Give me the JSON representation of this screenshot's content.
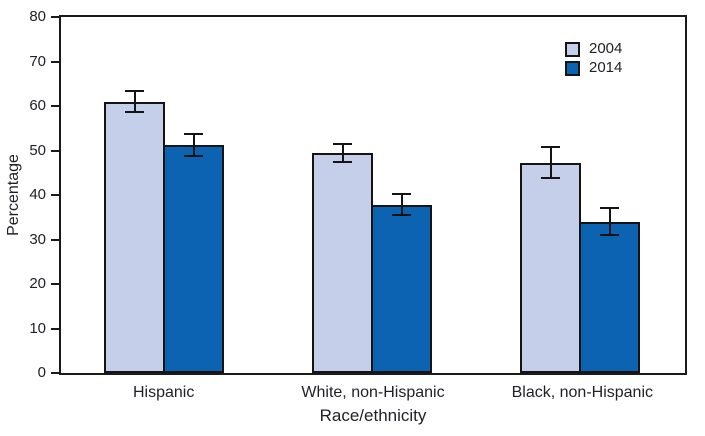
{
  "chart_data": {
    "type": "bar",
    "title": "",
    "categories": [
      "Hispanic",
      "White, non-Hispanic",
      "Black, non-Hispanic"
    ],
    "series": [
      {
        "name": "2004",
        "color": "#c6cfea",
        "values": [
          61.0,
          49.5,
          47.3
        ],
        "errors": [
          2.6,
          2.3,
          3.8
        ]
      },
      {
        "name": "2014",
        "color": "#0b63b1",
        "values": [
          51.3,
          37.8,
          34.0
        ],
        "errors": [
          2.7,
          2.6,
          3.3
        ]
      }
    ],
    "xlabel": "Race/ethnicity",
    "ylabel": "Percentage",
    "ylim": [
      0,
      80
    ],
    "ytick_step": 10,
    "yticks": [
      0,
      10,
      20,
      30,
      40,
      50,
      60,
      70,
      80
    ],
    "legend_position": "top-right",
    "grid": false,
    "error_bars": true
  },
  "colors": {
    "background": "#ffffff",
    "axis": "#1a1a1a",
    "text": "#232127",
    "series_2004": "#c6cfea",
    "series_2014": "#0b63b1"
  }
}
